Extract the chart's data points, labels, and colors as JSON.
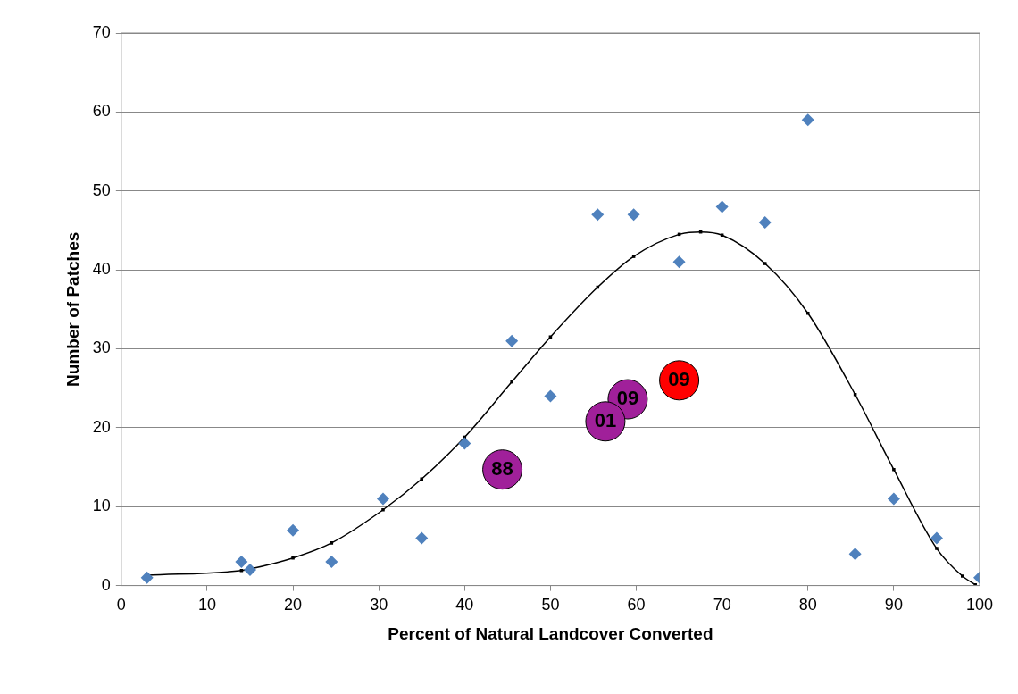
{
  "chart_data": {
    "type": "scatter",
    "xlabel": "Percent of Natural Landcover Converted",
    "ylabel": "Number of Patches",
    "xlim": [
      0,
      100
    ],
    "xticks": [
      0,
      10,
      20,
      30,
      40,
      50,
      60,
      70,
      80,
      90,
      100
    ],
    "ylim": [
      0,
      70
    ],
    "yticks": [
      0,
      10,
      20,
      30,
      40,
      50,
      60,
      70
    ],
    "grid": "y",
    "series": [
      {
        "marker": "diamond",
        "color": "#4f81bd",
        "x": [
          3,
          14,
          15,
          20,
          24.5,
          30.5,
          35,
          40,
          45.5,
          50,
          55.5,
          59.7,
          65,
          70,
          75,
          80,
          85.5,
          90,
          95,
          100
        ],
        "values": [
          1,
          3,
          2,
          7,
          3,
          11,
          6,
          18,
          31,
          24,
          47,
          47,
          41,
          48,
          46,
          59,
          4,
          11,
          6,
          1
        ]
      },
      {
        "type": "line",
        "marker": "square",
        "color": "#000000",
        "x": [
          3,
          14,
          15,
          20,
          24.5,
          30.5,
          35,
          40,
          45.5,
          50,
          55.5,
          59.7,
          65,
          67.5,
          70,
          75,
          80,
          85.5,
          90,
          95,
          98,
          99.5
        ],
        "values": [
          1.3,
          1.9,
          2.1,
          3.5,
          5.4,
          9.6,
          13.5,
          18.8,
          25.8,
          31.5,
          37.8,
          41.7,
          44.5,
          44.8,
          44.4,
          40.8,
          34.5,
          24.2,
          14.7,
          4.7,
          1.2,
          0.1
        ]
      },
      {
        "type": "scatter",
        "name": "88",
        "marker": "circle",
        "color": "#a0209a",
        "x": [
          44.4
        ],
        "values": [
          14.7
        ]
      },
      {
        "type": "scatter",
        "name": "01",
        "marker": "circle",
        "color": "#a0209a",
        "x": [
          56.4
        ],
        "values": [
          20.8
        ]
      },
      {
        "type": "scatter",
        "name": "09",
        "marker": "circle",
        "color": "#a0209a",
        "x": [
          59
        ],
        "values": [
          23.6
        ]
      },
      {
        "type": "scatter",
        "name": "09",
        "marker": "circle",
        "color": "#ff0000",
        "x": [
          65
        ],
        "values": [
          26
        ]
      }
    ]
  }
}
